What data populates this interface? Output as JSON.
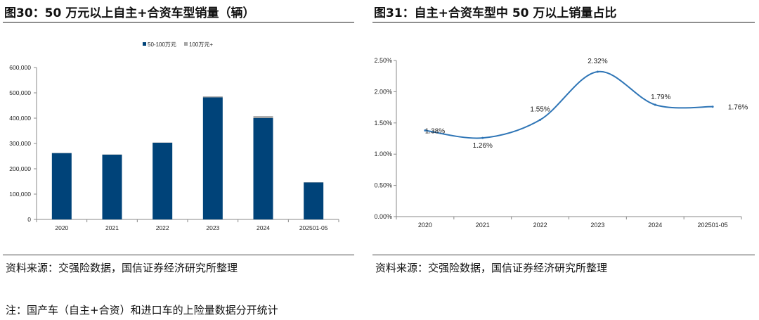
{
  "left": {
    "title": "图30：50 万元以上自主+合资车型销量（辆）",
    "source": "资料来源：交强险数据，国信证券经济研究所整理",
    "note": "注：国产车（自主+合资）和进口车的上险量数据分开统计"
  },
  "right": {
    "title": "图31：自主+合资车型中 50 万以上销量占比",
    "source": "资料来源：交强险数据，国信证券经济研究所整理"
  },
  "colors": {
    "bar_main": "#004379",
    "bar_top": "#a6a6a6",
    "line": "#2e75b6"
  },
  "chart_data": [
    {
      "type": "bar",
      "stacked": true,
      "categories": [
        "2020",
        "2021",
        "2022",
        "2023",
        "2024",
        "202501-05"
      ],
      "series": [
        {
          "name": "50-100万元",
          "values": [
            262000,
            256000,
            303000,
            482000,
            400000,
            146000
          ]
        },
        {
          "name": "100万元+",
          "values": [
            1000,
            1000,
            1000,
            4000,
            8000,
            1000
          ]
        }
      ],
      "ylim": [
        0,
        600000
      ],
      "yticks": [
        "0",
        "100,000",
        "200,000",
        "300,000",
        "400,000",
        "500,000",
        "600,000"
      ],
      "legend_position": "top",
      "grid": false
    },
    {
      "type": "line",
      "smooth": true,
      "categories": [
        "2020",
        "2021",
        "2022",
        "2023",
        "2024",
        "202501-05"
      ],
      "values": [
        1.38,
        1.26,
        1.55,
        2.32,
        1.79,
        1.76
      ],
      "data_labels": [
        "1.38%",
        "1.26%",
        "1.55%",
        "2.32%",
        "1.79%",
        "1.76%"
      ],
      "ylim": [
        0,
        2.5
      ],
      "yticks": [
        "0.00%",
        "0.50%",
        "1.00%",
        "1.50%",
        "2.00%",
        "2.50%"
      ],
      "grid": false
    }
  ]
}
